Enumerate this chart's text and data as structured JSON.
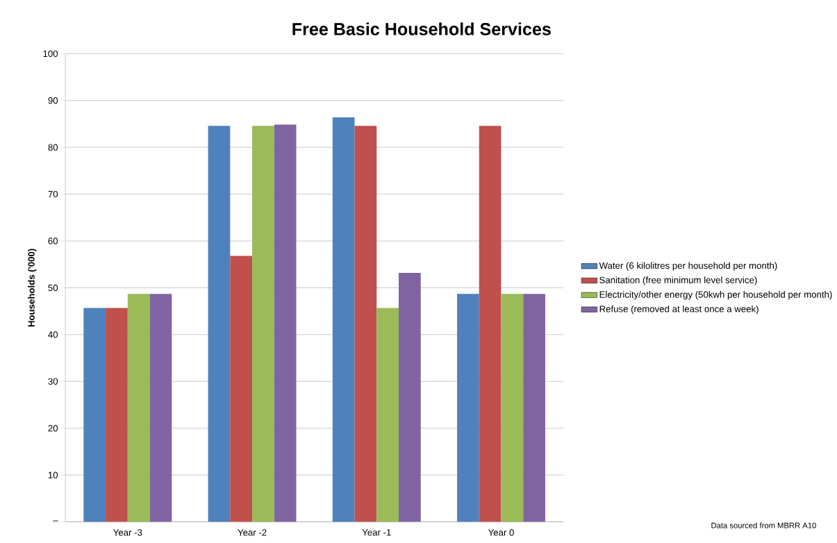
{
  "chart_data": {
    "type": "bar",
    "title": "Free Basic Household Services",
    "ylabel": "Households ('000)",
    "categories": [
      "Year -3",
      "Year -2",
      "Year -1",
      "Year 0"
    ],
    "series": [
      {
        "name": "Water (6 kilolitres per household per month)",
        "color": "#4f81bd",
        "values": [
          45.7,
          84.6,
          86.4,
          48.7
        ]
      },
      {
        "name": "Sanitation (free minimum level service)",
        "color": "#c0504d",
        "values": [
          45.7,
          56.8,
          84.6,
          84.6
        ]
      },
      {
        "name": "Electricity/other energy (50kwh per household per month)",
        "color": "#9bbb59",
        "values": [
          48.7,
          84.6,
          45.7,
          48.7
        ]
      },
      {
        "name": "Refuse (removed at least once a week)",
        "color": "#8064a2",
        "values": [
          48.7,
          84.9,
          53.2,
          48.7
        ]
      }
    ],
    "ylim": [
      0,
      100
    ],
    "yticks": [
      {
        "value": 0,
        "label": "–"
      },
      10,
      20,
      30,
      40,
      50,
      60,
      70,
      80,
      90,
      100
    ],
    "grid": "y",
    "legend": "right",
    "annotations": [
      "Data sourced from MBRR A10"
    ]
  }
}
